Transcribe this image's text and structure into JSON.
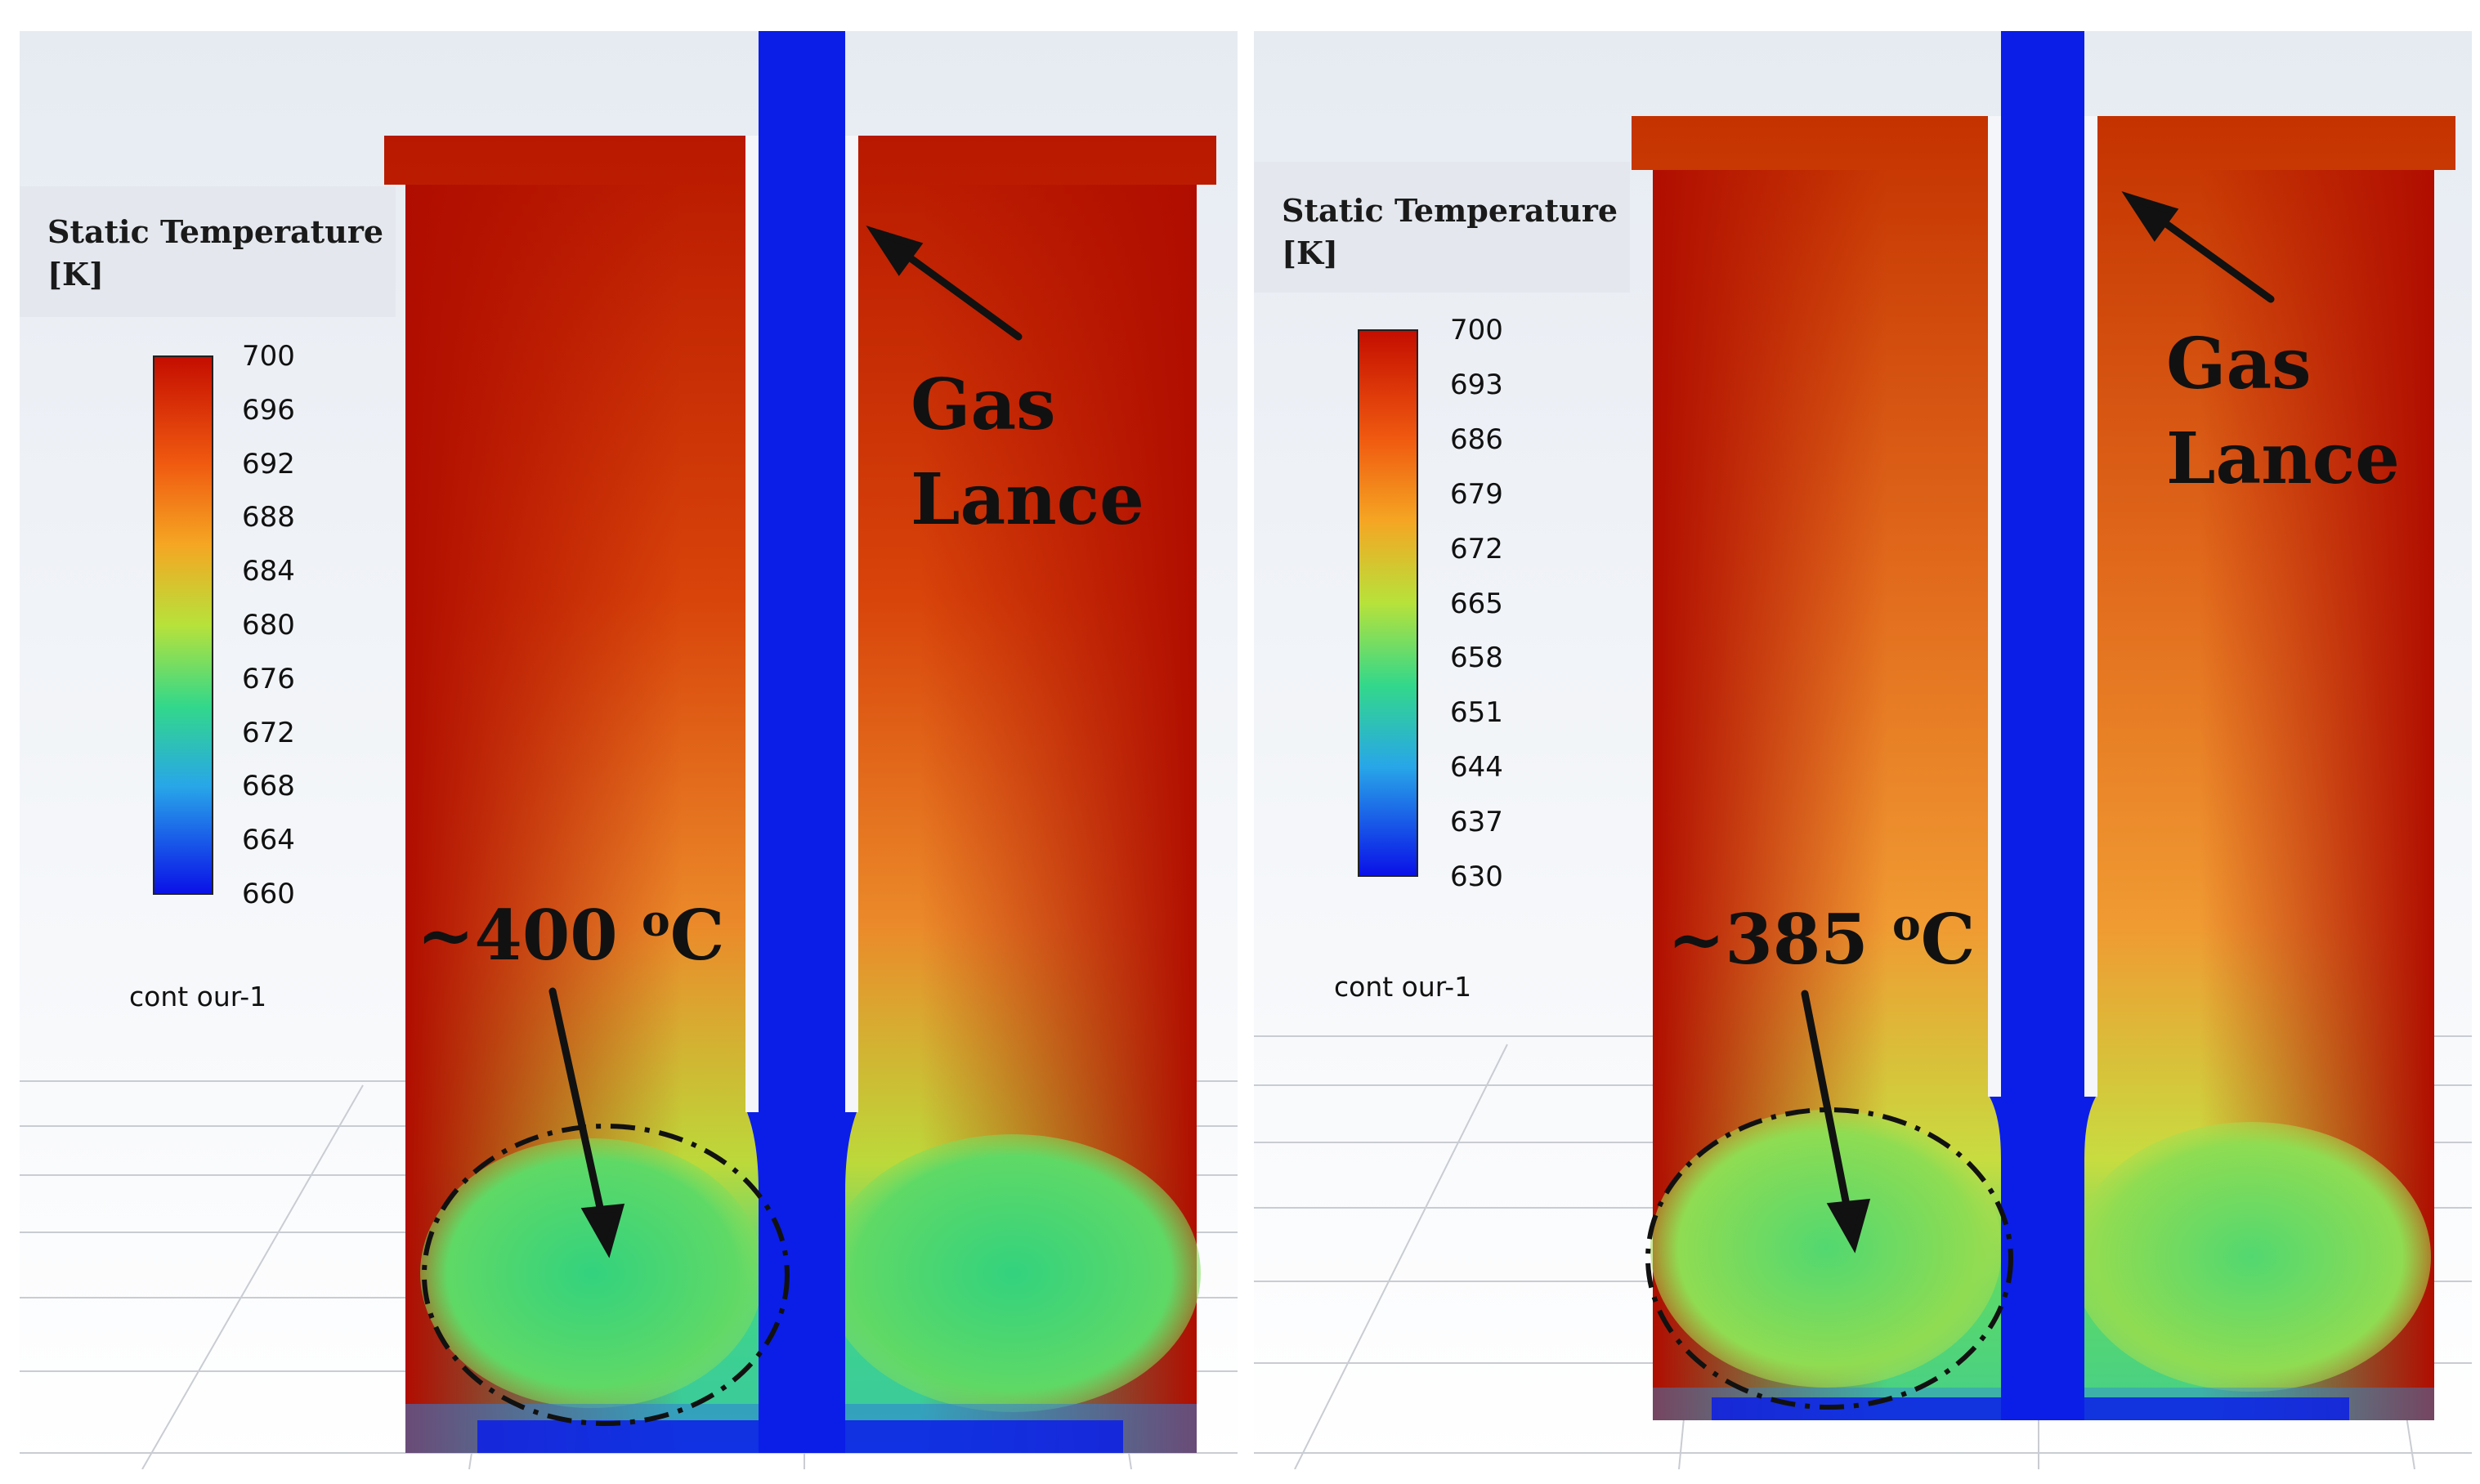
{
  "panels": [
    {
      "legend": {
        "title": "Static Temperature\n[K]",
        "ticks": [
          "700",
          "696",
          "692",
          "688",
          "684",
          "680",
          "676",
          "672",
          "668",
          "664",
          "660"
        ],
        "contour_name": "cont our-1"
      },
      "callout": "Gas\nLance",
      "annotation": {
        "prefix": "~400 ",
        "sup": "o",
        "suffix": "C"
      },
      "colors": {
        "hot": "#b31200",
        "cool": "#2fd37a",
        "lance": "#0a1ee8"
      }
    },
    {
      "legend": {
        "title": "Static Temperature\n[K]",
        "ticks": [
          "700",
          "693",
          "686",
          "679",
          "672",
          "665",
          "658",
          "651",
          "644",
          "637",
          "630"
        ],
        "contour_name": "cont our-1"
      },
      "callout": "Gas\nLance",
      "annotation": {
        "prefix": "~385 ",
        "sup": "o",
        "suffix": "C"
      },
      "colors": {
        "hot": "#b31200",
        "cool": "#4fd860",
        "lance": "#0a1ee8"
      }
    }
  ]
}
